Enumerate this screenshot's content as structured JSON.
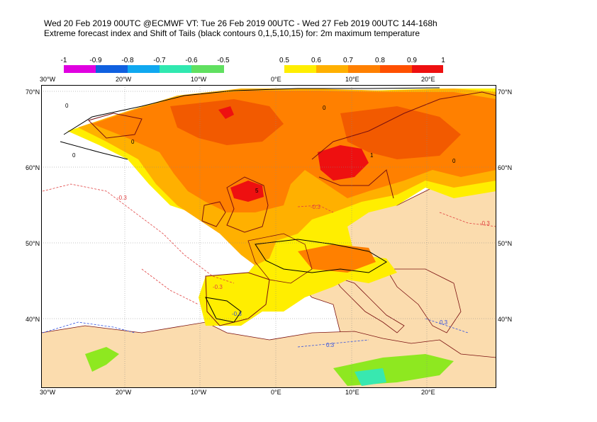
{
  "title_line1": "Wed 20 Feb 2019 00UTC @ECMWF VT: Tue 26 Feb 2019 00UTC - Wed 27 Feb 2019 00UTC  144-168h",
  "title_line2": "Extreme forecast index and Shift of Tails (black contours 0,1,5,10,15) for: 2m maximum temperature",
  "legend_negative": {
    "labels": [
      "-1",
      "-0.9",
      "-0.8",
      "-0.7",
      "-0.6",
      "-0.5"
    ],
    "colors": [
      "#e000e0",
      "#1060e0",
      "#10a8f0",
      "#30e8b0",
      "#60e060",
      "#a8f020"
    ]
  },
  "legend_positive": {
    "labels": [
      "0.5",
      "0.6",
      "0.7",
      "0.8",
      "0.9",
      "1"
    ],
    "colors": [
      "#ffee00",
      "#ffb000",
      "#ff8000",
      "#ff5000",
      "#ee1010"
    ]
  },
  "lon_labels": [
    "30°W",
    "20°W",
    "10°W",
    "0°E",
    "10°E",
    "20°E"
  ],
  "lat_labels": [
    "70°N",
    "60°N",
    "50°N",
    "40°N"
  ],
  "contour_labels": [
    "0",
    "0",
    "0",
    "0",
    "0",
    "1",
    "5",
    "-0.3",
    "-0.3",
    "-0.3",
    "-0.3",
    "0.3",
    "-0.3",
    "0.3"
  ],
  "colors": {
    "ocean": "#ffffff",
    "land": "#fbdcae",
    "coast": "#7a1010",
    "efi_05": "#ffee00",
    "efi_06": "#ffb000",
    "efi_07": "#ff8000",
    "efi_08": "#f25a00",
    "efi_09": "#ee1010",
    "green": "#8ee820",
    "cyan": "#38e8b0",
    "grid": "#888888"
  }
}
